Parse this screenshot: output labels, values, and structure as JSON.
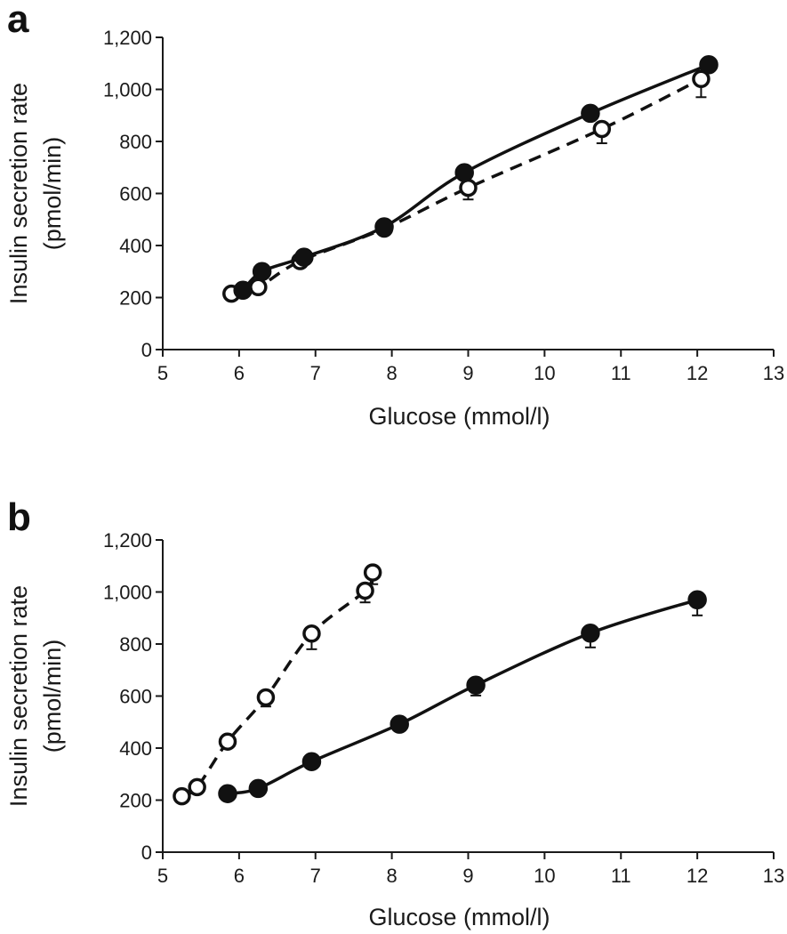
{
  "chart_data": [
    {
      "type": "line",
      "panel_label": "a",
      "xlabel": "Glucose (mmol/l)",
      "ylabel_line1": "Insulin secretion rate",
      "ylabel_line2": "(pmol/min)",
      "xlim": [
        5,
        13
      ],
      "ylim": [
        0,
        1200
      ],
      "x_ticks": [
        5,
        6,
        7,
        8,
        9,
        10,
        11,
        12,
        13
      ],
      "y_ticks": [
        0,
        200,
        400,
        600,
        800,
        1000,
        1200
      ],
      "y_tick_labels": [
        "0",
        "200",
        "400",
        "600",
        "800",
        "1,000",
        "1,200"
      ],
      "series": [
        {
          "name": "filled",
          "marker": "filled-circle",
          "line": "solid",
          "x": [
            6.05,
            6.3,
            6.85,
            7.9,
            8.95,
            10.6,
            12.15
          ],
          "y": [
            228,
            300,
            355,
            472,
            680,
            908,
            1095
          ],
          "err": [
            0,
            0,
            0,
            0,
            0,
            0,
            0
          ]
        },
        {
          "name": "open",
          "marker": "open-circle",
          "line": "dashed",
          "x": [
            5.9,
            6.25,
            6.8,
            7.9,
            9.0,
            10.75,
            12.05
          ],
          "y": [
            215,
            240,
            340,
            465,
            622,
            848,
            1040
          ],
          "err": [
            0,
            0,
            0,
            0,
            45,
            55,
            70
          ]
        }
      ]
    },
    {
      "type": "line",
      "panel_label": "b",
      "xlabel": "Glucose (mmol/l)",
      "ylabel_line1": "Insulin secretion rate",
      "ylabel_line2": "(pmol/min)",
      "xlim": [
        5,
        13
      ],
      "ylim": [
        0,
        1200
      ],
      "x_ticks": [
        5,
        6,
        7,
        8,
        9,
        10,
        11,
        12,
        13
      ],
      "y_ticks": [
        0,
        200,
        400,
        600,
        800,
        1000,
        1200
      ],
      "y_tick_labels": [
        "0",
        "200",
        "400",
        "600",
        "800",
        "1,000",
        "1,200"
      ],
      "series": [
        {
          "name": "filled",
          "marker": "filled-circle",
          "line": "solid",
          "x": [
            5.85,
            6.25,
            6.95,
            8.1,
            9.1,
            10.6,
            12.0
          ],
          "y": [
            225,
            245,
            348,
            492,
            642,
            842,
            970
          ],
          "err": [
            0,
            0,
            0,
            0,
            40,
            55,
            60
          ]
        },
        {
          "name": "open",
          "marker": "open-circle",
          "line": "dashed",
          "x": [
            5.25,
            5.45,
            5.85,
            6.35,
            6.95,
            7.65,
            7.75
          ],
          "y": [
            215,
            250,
            425,
            595,
            840,
            1005,
            1075
          ],
          "err": [
            0,
            0,
            0,
            35,
            60,
            45,
            45
          ]
        }
      ]
    }
  ]
}
